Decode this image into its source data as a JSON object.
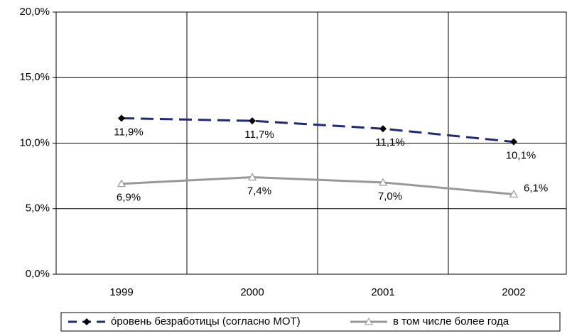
{
  "chart_data": {
    "type": "line",
    "categories": [
      "1999",
      "2000",
      "2001",
      "2002"
    ],
    "series": [
      {
        "name": "óровень безработицы (согласно МОТ)",
        "color": "#1f2a7a",
        "dashed": true,
        "marker": "diamond",
        "values": [
          11.9,
          11.7,
          11.1,
          10.1
        ],
        "value_labels": [
          "11,9%",
          "11,7%",
          "11,1%",
          "10,1%"
        ]
      },
      {
        "name": "в том числе более года",
        "color": "#999999",
        "dashed": false,
        "marker": "triangle",
        "values": [
          6.9,
          7.4,
          7.0,
          6.1
        ],
        "value_labels": [
          "6,9%",
          "7,4%",
          "7,0%",
          "6,1%"
        ]
      }
    ],
    "ylim": [
      0,
      20
    ],
    "yticks": [
      {
        "value": 0,
        "label": "0,0%"
      },
      {
        "value": 5,
        "label": "5,0%"
      },
      {
        "value": 10,
        "label": "10,0%"
      },
      {
        "value": 15,
        "label": "15,0%"
      },
      {
        "value": 20,
        "label": "20,0%"
      }
    ],
    "grid": true,
    "legend": "bottom"
  }
}
